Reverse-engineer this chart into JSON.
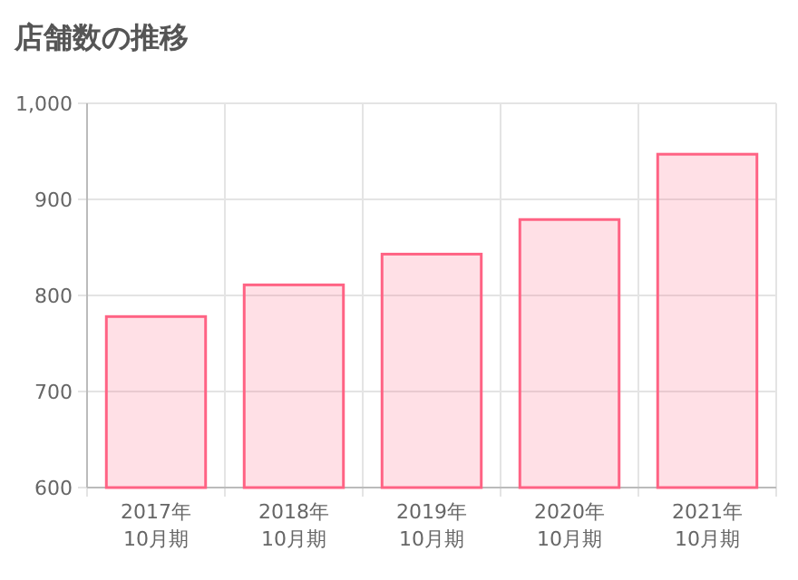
{
  "chart_data": {
    "type": "bar",
    "title": "店舗数の推移",
    "categories": [
      "2017年\n10月期",
      "2018年\n10月期",
      "2019年\n10月期",
      "2020年\n10月期",
      "2021年\n10月期"
    ],
    "series": [
      {
        "color": "#ff6384",
        "values": [
          778,
          811,
          843,
          879,
          947
        ]
      }
    ],
    "ylim": [
      600,
      1000
    ],
    "yticks": [
      600,
      700,
      800,
      900,
      {
        "value": 1000,
        "label": "1,000"
      }
    ],
    "grid": true
  }
}
